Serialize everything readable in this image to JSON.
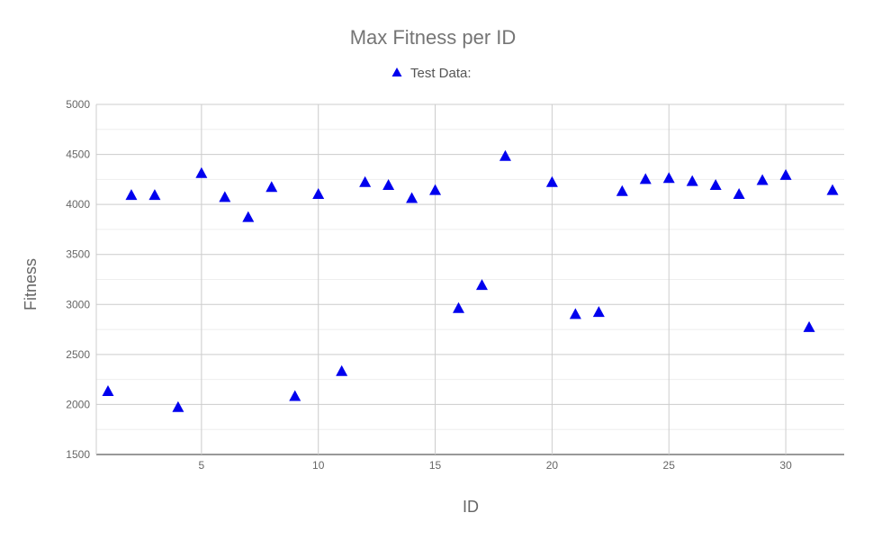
{
  "chart_data": {
    "type": "scatter",
    "title": "Max Fitness per ID",
    "xlabel": "ID",
    "ylabel": "Fitness",
    "xlim": [
      0.5,
      32.5
    ],
    "ylim": [
      1500,
      5000
    ],
    "xticks": [
      5,
      10,
      15,
      20,
      25,
      30
    ],
    "yticks": [
      1500,
      2000,
      2500,
      3000,
      3500,
      4000,
      4500,
      5000
    ],
    "grid": true,
    "legend_position": "top",
    "series": [
      {
        "name": "Test Data:",
        "color": "#0000ee",
        "marker": "triangle",
        "x": [
          1,
          2,
          3,
          4,
          5,
          6,
          7,
          8,
          9,
          10,
          11,
          12,
          13,
          14,
          15,
          16,
          17,
          18,
          20,
          21,
          22,
          23,
          24,
          25,
          26,
          27,
          28,
          29,
          30,
          31,
          32
        ],
        "y": [
          2130,
          4090,
          4090,
          1970,
          4310,
          4070,
          3870,
          4170,
          2080,
          4100,
          2330,
          4220,
          4190,
          4060,
          4140,
          2960,
          3190,
          4480,
          4220,
          2900,
          2920,
          4130,
          4250,
          4260,
          4230,
          4190,
          4100,
          4240,
          4290,
          2770,
          4140
        ]
      }
    ]
  }
}
